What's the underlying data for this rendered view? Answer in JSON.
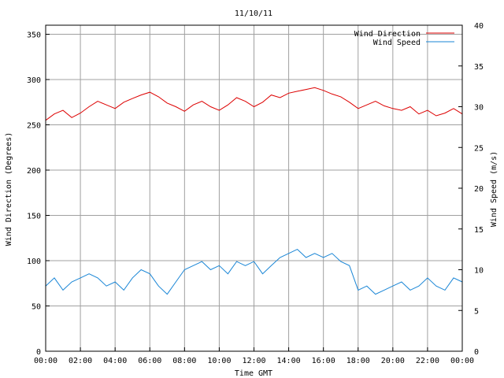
{
  "chart_data": {
    "type": "line",
    "title": "11/10/11",
    "xlabel": "Time GMT",
    "ylabel_left": "Wind Direction (Degrees)",
    "ylabel_right": "Wind Speed (m/s)",
    "x_ticks": [
      "00:00",
      "02:00",
      "04:00",
      "06:00",
      "08:00",
      "10:00",
      "12:00",
      "14:00",
      "16:00",
      "18:00",
      "20:00",
      "22:00",
      "00:00"
    ],
    "x_range_hours": [
      0,
      24
    ],
    "y_left_ticks": [
      0,
      50,
      100,
      150,
      200,
      250,
      300,
      350
    ],
    "y_left_range": [
      0,
      360
    ],
    "y_right_ticks": [
      0,
      5,
      10,
      15,
      20,
      25,
      30,
      35,
      40
    ],
    "y_right_range": [
      0,
      40
    ],
    "grid": true,
    "legend_position": "top-right",
    "series": [
      {
        "name": "Wind Direction",
        "axis": "left",
        "color": "#dd0000",
        "x_hours": [
          0.0,
          0.5,
          1.0,
          1.5,
          2.0,
          2.5,
          3.0,
          3.5,
          4.0,
          4.5,
          5.0,
          5.5,
          6.0,
          6.5,
          7.0,
          7.5,
          8.0,
          8.5,
          9.0,
          9.5,
          10.0,
          10.5,
          11.0,
          11.5,
          12.0,
          12.5,
          13.0,
          13.5,
          14.0,
          14.5,
          15.0,
          15.5,
          16.0,
          16.5,
          17.0,
          17.5,
          18.0,
          18.5,
          19.0,
          19.5,
          20.0,
          20.5,
          21.0,
          21.5,
          22.0,
          22.5,
          23.0,
          23.5,
          24.0
        ],
        "values": [
          255,
          262,
          266,
          258,
          263,
          270,
          276,
          272,
          268,
          275,
          279,
          283,
          286,
          281,
          274,
          270,
          265,
          272,
          276,
          270,
          266,
          272,
          280,
          276,
          270,
          275,
          283,
          280,
          285,
          287,
          289,
          291,
          288,
          284,
          281,
          275,
          268,
          272,
          276,
          271,
          268,
          266,
          270,
          262,
          266,
          260,
          263,
          268,
          262
        ]
      },
      {
        "name": "Wind Speed",
        "axis": "right",
        "color": "#1a86d6",
        "x_hours": [
          0.0,
          0.5,
          1.0,
          1.5,
          2.0,
          2.5,
          3.0,
          3.5,
          4.0,
          4.5,
          5.0,
          5.5,
          6.0,
          6.5,
          7.0,
          7.5,
          8.0,
          8.5,
          9.0,
          9.5,
          10.0,
          10.5,
          11.0,
          11.5,
          12.0,
          12.5,
          13.0,
          13.5,
          14.0,
          14.5,
          15.0,
          15.5,
          16.0,
          16.5,
          17.0,
          17.5,
          18.0,
          18.5,
          19.0,
          19.5,
          20.0,
          20.5,
          21.0,
          21.5,
          22.0,
          22.5,
          23.0,
          23.5,
          24.0
        ],
        "values": [
          8.0,
          9.0,
          7.5,
          8.5,
          9.0,
          9.5,
          9.0,
          8.0,
          8.5,
          7.5,
          9.0,
          10.0,
          9.5,
          8.0,
          7.0,
          8.5,
          10.0,
          10.5,
          11.0,
          10.0,
          10.5,
          9.5,
          11.0,
          10.5,
          11.0,
          9.5,
          10.5,
          11.5,
          12.0,
          12.5,
          11.5,
          12.0,
          11.5,
          12.0,
          11.0,
          10.5,
          7.5,
          8.0,
          7.0,
          7.5,
          8.0,
          8.5,
          7.5,
          8.0,
          9.0,
          8.0,
          7.5,
          9.0,
          8.5
        ]
      }
    ]
  }
}
